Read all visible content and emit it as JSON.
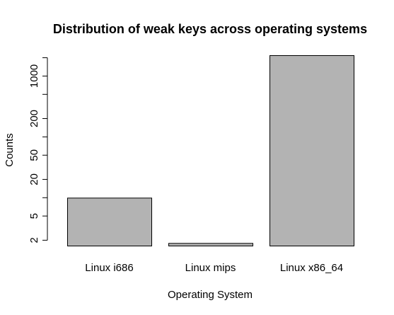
{
  "chart_data": {
    "type": "bar",
    "title": "Distribution of weak keys across operating systems",
    "xlabel": "Operating System",
    "ylabel": "Counts",
    "y_scale": "log",
    "categories": [
      "Linux i686",
      "Linux mips",
      "Linux x86_64"
    ],
    "values": [
      10,
      1.8,
      2200
    ],
    "y_ticks": [
      {
        "value": 2,
        "label": "2"
      },
      {
        "value": 5,
        "label": "5"
      },
      {
        "value": 10,
        "label": ""
      },
      {
        "value": 20,
        "label": "20"
      },
      {
        "value": 50,
        "label": "50"
      },
      {
        "value": 100,
        "label": ""
      },
      {
        "value": 200,
        "label": "200"
      },
      {
        "value": 500,
        "label": ""
      },
      {
        "value": 1000,
        "label": "1000"
      },
      {
        "value": 2000,
        "label": ""
      }
    ],
    "ylim": [
      1.63,
      2200
    ],
    "grid": false,
    "legend": "none",
    "bar_color": "#b3b3b3",
    "edge_color": "#000000"
  }
}
